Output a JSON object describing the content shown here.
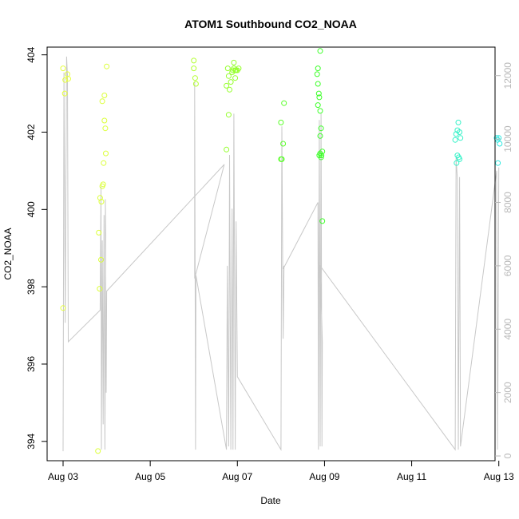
{
  "chart_data": {
    "type": "scatter",
    "title": "ATOM1 Southbound CO2_NOAA",
    "xlabel": "Date",
    "ylabel": "CO2_NOAA",
    "x_ticks": [
      "Aug 03",
      "Aug 05",
      "Aug 07",
      "Aug 09",
      "Aug 11",
      "Aug 13"
    ],
    "xlim": [
      3.0,
      13.28
    ],
    "ylim": [
      393.5,
      404.2
    ],
    "y_ticks": [
      394,
      396,
      398,
      400,
      402,
      404
    ],
    "y2lim": [
      -150,
      12900
    ],
    "y2_ticks": [
      0,
      2000,
      4000,
      6000,
      8000,
      10000,
      12000
    ],
    "y2_color": "#b8b8b8",
    "line_color": "#c8c8c8",
    "grid": false,
    "points": [
      {
        "x": 3.0,
        "y": 403.65,
        "c": "#e6ff3d"
      },
      {
        "x": 3.05,
        "y": 403.35,
        "c": "#e6ff3d"
      },
      {
        "x": 3.1,
        "y": 403.5,
        "c": "#e6ff3d"
      },
      {
        "x": 3.12,
        "y": 403.38,
        "c": "#e6ff3d"
      },
      {
        "x": 3.04,
        "y": 403.0,
        "c": "#e6ff3d"
      },
      {
        "x": 3.0,
        "y": 397.45,
        "c": "#e6ff3d"
      },
      {
        "x": 3.8,
        "y": 393.75,
        "c": "#dcff3a"
      },
      {
        "x": 3.82,
        "y": 399.4,
        "c": "#dcff3a"
      },
      {
        "x": 3.85,
        "y": 400.3,
        "c": "#dcff3a"
      },
      {
        "x": 3.88,
        "y": 400.2,
        "c": "#dcff3a"
      },
      {
        "x": 3.9,
        "y": 400.6,
        "c": "#dcff3a"
      },
      {
        "x": 3.92,
        "y": 400.65,
        "c": "#dcff3a"
      },
      {
        "x": 3.87,
        "y": 398.7,
        "c": "#dcff3a"
      },
      {
        "x": 3.84,
        "y": 397.95,
        "c": "#dcff3a"
      },
      {
        "x": 3.9,
        "y": 402.8,
        "c": "#dcff3a"
      },
      {
        "x": 3.95,
        "y": 402.95,
        "c": "#dcff3a"
      },
      {
        "x": 3.95,
        "y": 402.3,
        "c": "#dcff3a"
      },
      {
        "x": 3.97,
        "y": 402.1,
        "c": "#dcff3a"
      },
      {
        "x": 3.98,
        "y": 401.45,
        "c": "#dcff3a"
      },
      {
        "x": 3.93,
        "y": 401.2,
        "c": "#dcff3a"
      },
      {
        "x": 4.0,
        "y": 403.7,
        "c": "#dcff3a"
      },
      {
        "x": 6.0,
        "y": 403.85,
        "c": "#b4ff32"
      },
      {
        "x": 6.0,
        "y": 403.65,
        "c": "#b4ff32"
      },
      {
        "x": 6.03,
        "y": 403.4,
        "c": "#b4ff32"
      },
      {
        "x": 6.05,
        "y": 403.25,
        "c": "#b4ff32"
      },
      {
        "x": 6.75,
        "y": 401.55,
        "c": "#96ff2e"
      },
      {
        "x": 6.8,
        "y": 402.45,
        "c": "#96ff2e"
      },
      {
        "x": 6.75,
        "y": 403.2,
        "c": "#96ff2e"
      },
      {
        "x": 6.8,
        "y": 403.45,
        "c": "#96ff2e"
      },
      {
        "x": 6.78,
        "y": 403.65,
        "c": "#96ff2e"
      },
      {
        "x": 6.82,
        "y": 403.1,
        "c": "#96ff2e"
      },
      {
        "x": 6.85,
        "y": 403.3,
        "c": "#96ff2e"
      },
      {
        "x": 6.88,
        "y": 403.55,
        "c": "#96ff2e"
      },
      {
        "x": 6.9,
        "y": 403.6,
        "c": "#96ff2e"
      },
      {
        "x": 6.92,
        "y": 403.65,
        "c": "#96ff2e"
      },
      {
        "x": 6.95,
        "y": 403.6,
        "c": "#96ff2e"
      },
      {
        "x": 6.92,
        "y": 403.8,
        "c": "#96ff2e"
      },
      {
        "x": 6.95,
        "y": 403.4,
        "c": "#96ff2e"
      },
      {
        "x": 6.97,
        "y": 403.6,
        "c": "#96ff2e"
      },
      {
        "x": 7.0,
        "y": 403.6,
        "c": "#96ff2e"
      },
      {
        "x": 7.03,
        "y": 403.65,
        "c": "#96ff2e"
      },
      {
        "x": 8.0,
        "y": 401.3,
        "c": "#5aff2a"
      },
      {
        "x": 8.02,
        "y": 401.3,
        "c": "#5aff2a"
      },
      {
        "x": 8.0,
        "y": 402.25,
        "c": "#5aff2a"
      },
      {
        "x": 8.05,
        "y": 401.7,
        "c": "#5aff2a"
      },
      {
        "x": 8.07,
        "y": 402.75,
        "c": "#5aff2a"
      },
      {
        "x": 8.85,
        "y": 403.65,
        "c": "#3cff28"
      },
      {
        "x": 8.83,
        "y": 403.5,
        "c": "#3cff28"
      },
      {
        "x": 8.85,
        "y": 403.25,
        "c": "#3cff28"
      },
      {
        "x": 8.87,
        "y": 403.0,
        "c": "#3cff28"
      },
      {
        "x": 8.9,
        "y": 404.1,
        "c": "#3cff28"
      },
      {
        "x": 8.88,
        "y": 402.9,
        "c": "#3cff28"
      },
      {
        "x": 8.85,
        "y": 402.7,
        "c": "#3cff28"
      },
      {
        "x": 8.9,
        "y": 402.55,
        "c": "#3cff28"
      },
      {
        "x": 8.92,
        "y": 402.1,
        "c": "#3cff28"
      },
      {
        "x": 8.9,
        "y": 401.9,
        "c": "#3cff28"
      },
      {
        "x": 8.88,
        "y": 401.4,
        "c": "#3cff28"
      },
      {
        "x": 8.9,
        "y": 401.45,
        "c": "#3cff28"
      },
      {
        "x": 8.93,
        "y": 401.4,
        "c": "#3cff28"
      },
      {
        "x": 8.95,
        "y": 401.5,
        "c": "#3cff28"
      },
      {
        "x": 8.92,
        "y": 401.35,
        "c": "#3cff28"
      },
      {
        "x": 8.95,
        "y": 399.7,
        "c": "#3cff28"
      },
      {
        "x": 12.0,
        "y": 401.8,
        "c": "#36f2c8"
      },
      {
        "x": 12.02,
        "y": 401.95,
        "c": "#36f2c8"
      },
      {
        "x": 12.05,
        "y": 402.05,
        "c": "#36f2c8"
      },
      {
        "x": 12.07,
        "y": 402.25,
        "c": "#36f2c8"
      },
      {
        "x": 12.1,
        "y": 402.0,
        "c": "#36f2c8"
      },
      {
        "x": 12.12,
        "y": 401.85,
        "c": "#36f2c8"
      },
      {
        "x": 12.05,
        "y": 401.4,
        "c": "#36f2c8"
      },
      {
        "x": 12.08,
        "y": 401.35,
        "c": "#36f2c8"
      },
      {
        "x": 12.1,
        "y": 401.3,
        "c": "#36f2c8"
      },
      {
        "x": 12.03,
        "y": 401.2,
        "c": "#36f2c8"
      },
      {
        "x": 12.95,
        "y": 401.85,
        "c": "#30e8e0"
      },
      {
        "x": 12.97,
        "y": 401.8,
        "c": "#30e8e0"
      },
      {
        "x": 13.0,
        "y": 401.85,
        "c": "#30e8e0"
      },
      {
        "x": 13.02,
        "y": 401.7,
        "c": "#30e8e0"
      },
      {
        "x": 12.98,
        "y": 401.2,
        "c": "#30e8e0"
      }
    ],
    "altitude_line": [
      [
        3.0,
        150
      ],
      [
        3.02,
        12100
      ],
      [
        3.05,
        4200
      ],
      [
        3.08,
        12600
      ],
      [
        3.1,
        12000
      ],
      [
        3.12,
        3600
      ],
      [
        3.85,
        4600
      ],
      [
        3.87,
        8500
      ],
      [
        3.88,
        200
      ],
      [
        3.9,
        6800
      ],
      [
        3.92,
        1000
      ],
      [
        3.94,
        7600
      ],
      [
        3.96,
        200
      ],
      [
        3.98,
        7000
      ],
      [
        3.97,
        8100
      ],
      [
        3.99,
        2000
      ],
      [
        4.0,
        5200
      ],
      [
        6.7,
        9200
      ],
      [
        6.02,
        5600
      ],
      [
        6.02,
        11800
      ],
      [
        6.04,
        200
      ],
      [
        6.05,
        5700
      ],
      [
        6.75,
        200
      ],
      [
        6.77,
        6000
      ],
      [
        6.8,
        300
      ],
      [
        6.82,
        9500
      ],
      [
        6.85,
        200
      ],
      [
        6.88,
        7800
      ],
      [
        6.9,
        200
      ],
      [
        6.92,
        10800
      ],
      [
        6.95,
        200
      ],
      [
        6.97,
        7400
      ],
      [
        7.0,
        2500
      ],
      [
        8.0,
        200
      ],
      [
        8.02,
        10400
      ],
      [
        8.05,
        3700
      ],
      [
        8.07,
        6000
      ],
      [
        8.05,
        5900
      ],
      [
        8.85,
        8000
      ],
      [
        8.86,
        200
      ],
      [
        8.88,
        10600
      ],
      [
        8.9,
        300
      ],
      [
        8.92,
        10800
      ],
      [
        8.94,
        300
      ],
      [
        8.95,
        3600
      ],
      [
        8.9,
        6000
      ],
      [
        12.0,
        200
      ],
      [
        12.02,
        9400
      ],
      [
        12.05,
        8700
      ],
      [
        12.07,
        200
      ],
      [
        12.1,
        8800
      ],
      [
        12.12,
        300
      ],
      [
        12.95,
        9000
      ],
      [
        12.97,
        200
      ],
      [
        13.0,
        9100
      ],
      [
        12.98,
        2000
      ]
    ]
  }
}
